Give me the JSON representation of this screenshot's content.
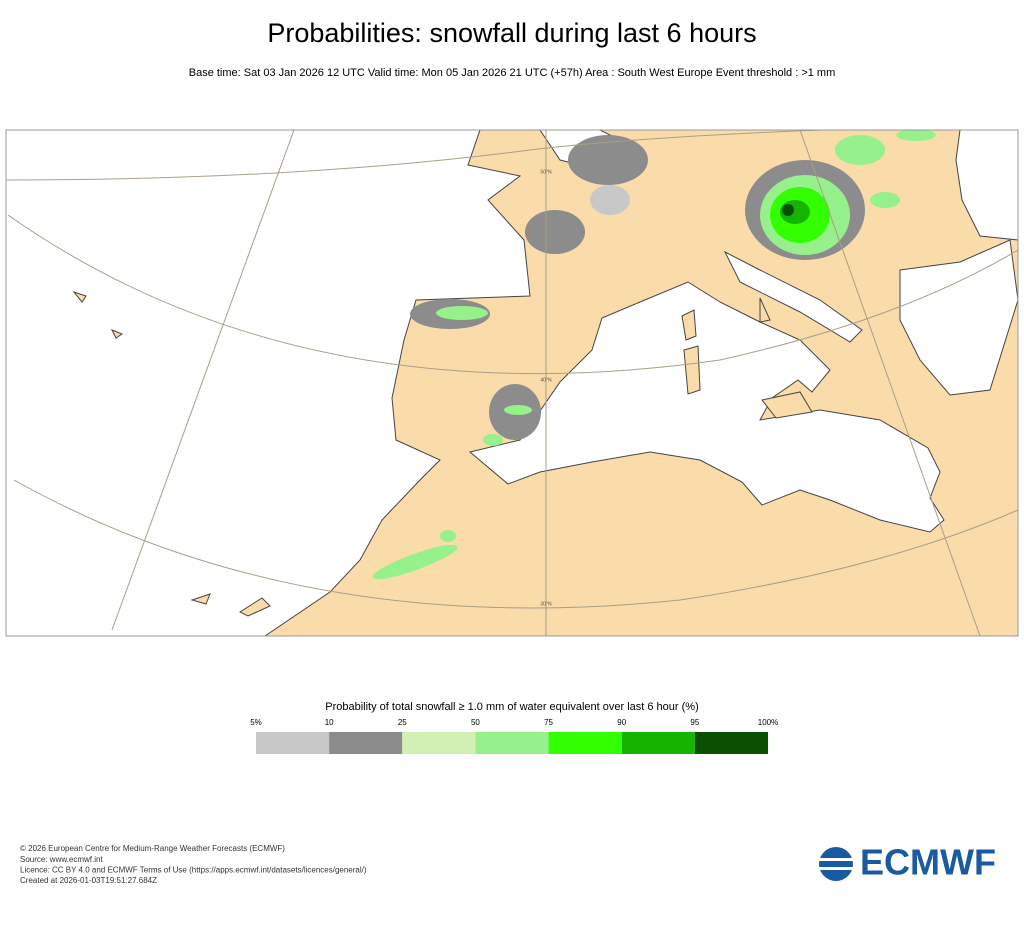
{
  "header": {
    "title": "Probabilities: snowfall during last 6 hours",
    "subtitle": "Base time: Sat 03 Jan 2026 12 UTC Valid time: Mon 05 Jan 2026 21 UTC (+57h) Area : South West Europe Event threshold : >1 mm"
  },
  "map": {
    "latitude_labels": [
      "50°N",
      "40°N",
      "30°N"
    ]
  },
  "legend": {
    "title": "Probability of total snowfall ≥ 1.0 mm of water equivalent over last 6 hour (%)",
    "labels": [
      "5%",
      "10",
      "25",
      "50",
      "75",
      "90",
      "95",
      "100%"
    ],
    "colors": [
      "#c8c8c8",
      "#8c8c8c",
      "#d2f0b4",
      "#96f08c",
      "#32ff00",
      "#14b400",
      "#0a5000"
    ]
  },
  "footer": {
    "lines": [
      "© 2026 European Centre for Medium-Range Weather Forecasts (ECMWF)",
      "Source: www.ecmwf.int",
      "Licence: CC BY 4.0 and ECMWF Terms of Use (https://apps.ecmwf.int/datasets/licences/general/)",
      "Created at 2026-01-03T19:51:27.684Z"
    ]
  },
  "logo": {
    "text": "ECMWF"
  }
}
